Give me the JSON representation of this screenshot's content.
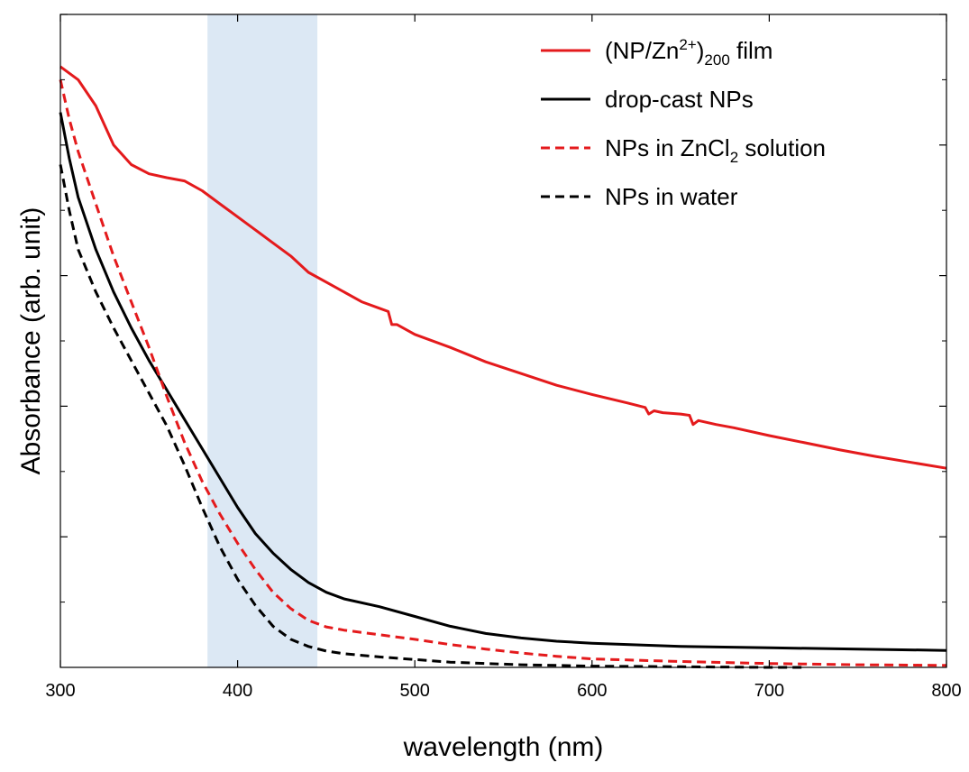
{
  "chart_data": {
    "type": "line",
    "xlabel": "wavelength (nm)",
    "ylabel": "Absorbance (arb. unit)",
    "xlim": [
      300,
      800
    ],
    "ylim": [
      0,
      1
    ],
    "x_ticks": [
      "300",
      "400",
      "500",
      "600",
      "700",
      "800"
    ],
    "y_ticks_labeled": false,
    "grid": false,
    "legend_position": "top-right",
    "highlight_band": {
      "x": [
        383,
        445
      ],
      "color": "#dce8f4"
    },
    "legend": [
      {
        "parts": [
          "(NP/Zn",
          "2+",
          ")",
          "200",
          " film"
        ],
        "color": "#e41a1c",
        "dash": "solid"
      },
      {
        "parts": [
          "drop-cast NPs"
        ],
        "color": "#000000",
        "dash": "solid"
      },
      {
        "parts": [
          "NPs in ZnCl",
          "2",
          " solution"
        ],
        "color": "#e41a1c",
        "dash": "dashed"
      },
      {
        "parts": [
          "NPs in water"
        ],
        "color": "#000000",
        "dash": "dashed"
      }
    ],
    "series": [
      {
        "name": "(NP/Zn2+)200 film",
        "color": "#e41a1c",
        "dash": "solid",
        "points": [
          [
            300,
            0.92
          ],
          [
            310,
            0.9
          ],
          [
            320,
            0.86
          ],
          [
            330,
            0.8
          ],
          [
            340,
            0.77
          ],
          [
            350,
            0.756
          ],
          [
            360,
            0.75
          ],
          [
            370,
            0.745
          ],
          [
            380,
            0.73
          ],
          [
            390,
            0.71
          ],
          [
            400,
            0.69
          ],
          [
            410,
            0.67
          ],
          [
            420,
            0.65
          ],
          [
            430,
            0.63
          ],
          [
            440,
            0.605
          ],
          [
            450,
            0.59
          ],
          [
            460,
            0.575
          ],
          [
            470,
            0.56
          ],
          [
            480,
            0.55
          ],
          [
            485,
            0.545
          ],
          [
            487,
            0.525
          ],
          [
            490,
            0.525
          ],
          [
            500,
            0.51
          ],
          [
            520,
            0.49
          ],
          [
            540,
            0.468
          ],
          [
            560,
            0.45
          ],
          [
            580,
            0.432
          ],
          [
            600,
            0.418
          ],
          [
            620,
            0.405
          ],
          [
            630,
            0.398
          ],
          [
            632,
            0.388
          ],
          [
            635,
            0.393
          ],
          [
            640,
            0.39
          ],
          [
            650,
            0.388
          ],
          [
            655,
            0.386
          ],
          [
            657,
            0.372
          ],
          [
            660,
            0.378
          ],
          [
            670,
            0.372
          ],
          [
            680,
            0.367
          ],
          [
            700,
            0.355
          ],
          [
            720,
            0.344
          ],
          [
            740,
            0.333
          ],
          [
            760,
            0.323
          ],
          [
            780,
            0.314
          ],
          [
            800,
            0.305
          ]
        ]
      },
      {
        "name": "drop-cast NPs",
        "color": "#000000",
        "dash": "solid",
        "points": [
          [
            300,
            0.85
          ],
          [
            305,
            0.78
          ],
          [
            310,
            0.72
          ],
          [
            320,
            0.64
          ],
          [
            330,
            0.575
          ],
          [
            340,
            0.52
          ],
          [
            350,
            0.47
          ],
          [
            360,
            0.425
          ],
          [
            370,
            0.38
          ],
          [
            380,
            0.335
          ],
          [
            390,
            0.29
          ],
          [
            400,
            0.245
          ],
          [
            410,
            0.205
          ],
          [
            420,
            0.175
          ],
          [
            430,
            0.15
          ],
          [
            440,
            0.13
          ],
          [
            450,
            0.115
          ],
          [
            460,
            0.105
          ],
          [
            480,
            0.093
          ],
          [
            500,
            0.078
          ],
          [
            520,
            0.063
          ],
          [
            540,
            0.052
          ],
          [
            560,
            0.045
          ],
          [
            580,
            0.04
          ],
          [
            600,
            0.037
          ],
          [
            650,
            0.032
          ],
          [
            700,
            0.03
          ],
          [
            750,
            0.028
          ],
          [
            800,
            0.026
          ]
        ]
      },
      {
        "name": "NPs in ZnCl2 solution",
        "color": "#e41a1c",
        "dash": "dashed",
        "points": [
          [
            300,
            0.9
          ],
          [
            305,
            0.84
          ],
          [
            310,
            0.79
          ],
          [
            320,
            0.71
          ],
          [
            330,
            0.63
          ],
          [
            340,
            0.56
          ],
          [
            350,
            0.49
          ],
          [
            360,
            0.415
          ],
          [
            370,
            0.345
          ],
          [
            380,
            0.285
          ],
          [
            390,
            0.235
          ],
          [
            400,
            0.19
          ],
          [
            410,
            0.15
          ],
          [
            420,
            0.115
          ],
          [
            430,
            0.09
          ],
          [
            440,
            0.072
          ],
          [
            450,
            0.062
          ],
          [
            460,
            0.057
          ],
          [
            480,
            0.05
          ],
          [
            500,
            0.043
          ],
          [
            520,
            0.035
          ],
          [
            540,
            0.028
          ],
          [
            560,
            0.022
          ],
          [
            580,
            0.017
          ],
          [
            600,
            0.013
          ],
          [
            650,
            0.009
          ],
          [
            700,
            0.006
          ],
          [
            750,
            0.004
          ],
          [
            800,
            0.003
          ]
        ]
      },
      {
        "name": "NPs in water",
        "color": "#000000",
        "dash": "dashed",
        "points": [
          [
            300,
            0.77
          ],
          [
            305,
            0.7
          ],
          [
            310,
            0.64
          ],
          [
            320,
            0.575
          ],
          [
            330,
            0.52
          ],
          [
            340,
            0.47
          ],
          [
            350,
            0.42
          ],
          [
            360,
            0.37
          ],
          [
            370,
            0.31
          ],
          [
            380,
            0.245
          ],
          [
            390,
            0.185
          ],
          [
            400,
            0.135
          ],
          [
            410,
            0.095
          ],
          [
            420,
            0.063
          ],
          [
            430,
            0.043
          ],
          [
            440,
            0.032
          ],
          [
            450,
            0.025
          ],
          [
            460,
            0.021
          ],
          [
            480,
            0.016
          ],
          [
            500,
            0.012
          ],
          [
            520,
            0.008
          ],
          [
            540,
            0.006
          ],
          [
            560,
            0.004
          ],
          [
            580,
            0.003
          ],
          [
            600,
            0.002
          ],
          [
            650,
            0.001
          ],
          [
            700,
            0
          ],
          [
            720,
            0
          ]
        ]
      }
    ]
  }
}
